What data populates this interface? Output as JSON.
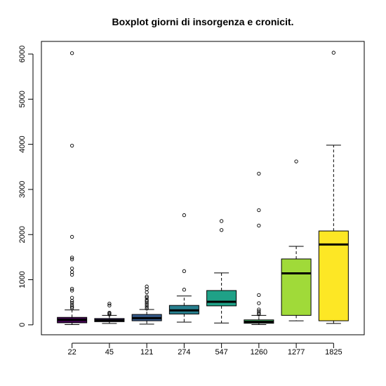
{
  "chart_data": {
    "type": "boxplot",
    "title": "Boxplot giorni di insorgenza e cronicit.",
    "xlabel": "",
    "ylabel": "",
    "ylim": [
      -220,
      6280
    ],
    "yticks": [
      0,
      1000,
      2000,
      3000,
      4000,
      5000,
      6000
    ],
    "categories": [
      "22",
      "45",
      "121",
      "274",
      "547",
      "1260",
      "1277",
      "1825"
    ],
    "boxes": [
      {
        "category": "22",
        "color": "#440154",
        "whisker_low": 5,
        "q1": 45,
        "median": 110,
        "q3": 165,
        "whisker_high": 330,
        "outliers": [
          6020,
          3970,
          1950,
          1490,
          1450,
          1250,
          1170,
          1110,
          800,
          760,
          600,
          530,
          490,
          440,
          400,
          370
        ]
      },
      {
        "category": "45",
        "color": "#46337e",
        "whisker_low": 30,
        "q1": 70,
        "median": 100,
        "q3": 140,
        "whisker_high": 210,
        "outliers": [
          470,
          430,
          270,
          250,
          230
        ]
      },
      {
        "category": "121",
        "color": "#365c8d",
        "whisker_low": 15,
        "q1": 90,
        "median": 150,
        "q3": 230,
        "whisker_high": 340,
        "outliers": [
          850,
          790,
          720,
          630,
          600,
          550,
          520,
          480,
          440,
          400,
          360
        ]
      },
      {
        "category": "274",
        "color": "#277f8e",
        "whisker_low": 60,
        "q1": 240,
        "median": 320,
        "q3": 430,
        "whisker_high": 640,
        "outliers": [
          2430,
          1190,
          780
        ]
      },
      {
        "category": "547",
        "color": "#1fa187",
        "whisker_low": 40,
        "q1": 420,
        "median": 510,
        "q3": 760,
        "whisker_high": 1150,
        "outliers": [
          2300,
          2100
        ]
      },
      {
        "category": "1260",
        "color": "#4ac16d",
        "whisker_low": 5,
        "q1": 35,
        "median": 65,
        "q3": 110,
        "whisker_high": 210,
        "outliers": [
          3350,
          2540,
          2200,
          660,
          480,
          340,
          300,
          260,
          230
        ]
      },
      {
        "category": "1277",
        "color": "#a0da39",
        "whisker_low": 90,
        "q1": 210,
        "median": 1140,
        "q3": 1460,
        "whisker_high": 1740,
        "outliers": [
          3620
        ]
      },
      {
        "category": "1825",
        "color": "#fde725",
        "whisker_low": 30,
        "q1": 90,
        "median": 1780,
        "q3": 2080,
        "whisker_high": 3980,
        "outliers": [
          6030
        ]
      }
    ]
  }
}
